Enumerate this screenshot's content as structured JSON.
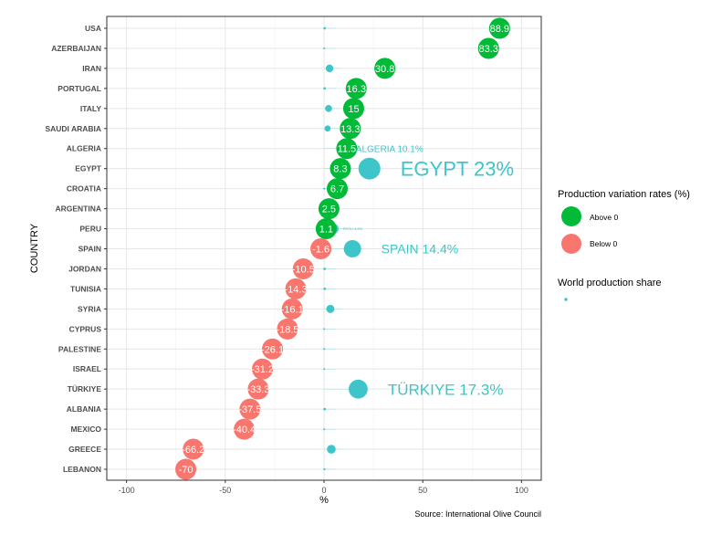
{
  "chart_data": {
    "type": "scatter",
    "xlabel": "%",
    "ylabel": "COUNTRY",
    "xlim": [
      -110,
      110
    ],
    "xticks": [
      -100,
      -50,
      0,
      50,
      100
    ],
    "grid": true,
    "legend_position": "right",
    "source": "Source: International Olive Council",
    "colors": {
      "above": "#00ba38",
      "below": "#f8766d",
      "share": "#3ec5c9"
    },
    "legend": {
      "variation_title": "Production variation rates (%)",
      "above_label": "Above 0",
      "below_label": "Below 0",
      "share_title": "World production share"
    },
    "countries": [
      {
        "name": "USA",
        "variation": 88.9,
        "share": 0.3
      },
      {
        "name": "AZERBAIJAN",
        "variation": 83.3,
        "share": 0.1
      },
      {
        "name": "IRAN",
        "variation": 30.8,
        "share": 2.8
      },
      {
        "name": "PORTUGAL",
        "variation": 16.3,
        "share": 0.3
      },
      {
        "name": "ITALY",
        "variation": 15,
        "share": 2.3
      },
      {
        "name": "SAUDI ARABIA",
        "variation": 13.3,
        "share": 1.8
      },
      {
        "name": "ALGERIA",
        "variation": 11.5,
        "share": 10.1,
        "label": "ALGERIA 10.1%"
      },
      {
        "name": "EGYPT",
        "variation": 8.3,
        "share": 23,
        "label": "EGYPT 23%"
      },
      {
        "name": "CROATIA",
        "variation": 6.7,
        "share": 0.1
      },
      {
        "name": "ARGENTINA",
        "variation": 2.5,
        "share": 2.3
      },
      {
        "name": "PERU",
        "variation": 1.1,
        "share": 4.8,
        "label": "PERU 4.8%"
      },
      {
        "name": "SPAIN",
        "variation": -1.6,
        "share": 14.4,
        "label": "SPAIN 14.4%"
      },
      {
        "name": "JORDAN",
        "variation": -10.5,
        "share": 0.3
      },
      {
        "name": "TUNISIA",
        "variation": -14.3,
        "share": 0.3
      },
      {
        "name": "SYRIA",
        "variation": -16.1,
        "share": 3.2
      },
      {
        "name": "CYPRUS",
        "variation": -18.5,
        "share": 0.1
      },
      {
        "name": "PALESTINE",
        "variation": -26.1,
        "share": 0.1
      },
      {
        "name": "ISRAEL",
        "variation": -31.2,
        "share": 0.1
      },
      {
        "name": "TÜRKIYE",
        "variation": -33.3,
        "share": 17.3,
        "label": "TÜRKIYE 17.3%"
      },
      {
        "name": "ALBANIA",
        "variation": -37.5,
        "share": 0.3
      },
      {
        "name": "MEXICO",
        "variation": -40.4,
        "share": 0.1
      },
      {
        "name": "GREECE",
        "variation": -66.2,
        "share": 3.7
      },
      {
        "name": "LEBANON",
        "variation": -70,
        "share": 0.2
      }
    ]
  }
}
